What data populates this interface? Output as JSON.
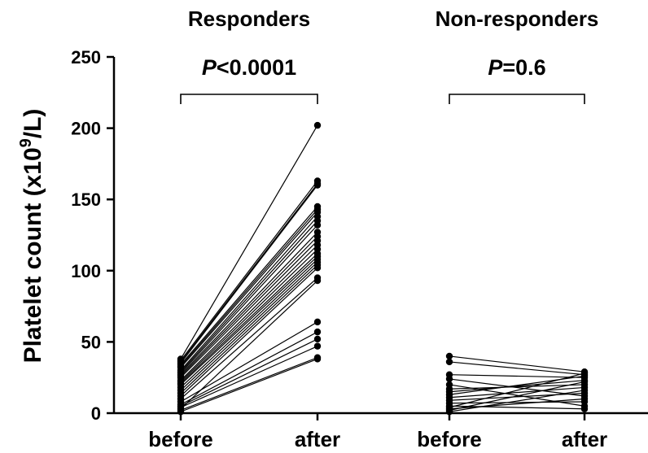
{
  "chart_data": {
    "type": "line",
    "ylabel": "Platelet count (x10",
    "ylabel_sup": "9",
    "ylabel_tail": "/L)",
    "ylim": [
      0,
      250
    ],
    "yticks": [
      "0",
      "50",
      "100",
      "150",
      "200",
      "250"
    ],
    "grid": false,
    "groups": [
      {
        "title": "Responders",
        "p_italic": "P",
        "p_rest": "<0.0001",
        "categories": [
          "before",
          "after"
        ],
        "pairs": [
          [
            38,
            202
          ],
          [
            37,
            163
          ],
          [
            36,
            161
          ],
          [
            35,
            160
          ],
          [
            34,
            145
          ],
          [
            33,
            143
          ],
          [
            32,
            141
          ],
          [
            30,
            138
          ],
          [
            29,
            135
          ],
          [
            28,
            132
          ],
          [
            27,
            127
          ],
          [
            26,
            124
          ],
          [
            25,
            121
          ],
          [
            23,
            118
          ],
          [
            22,
            115
          ],
          [
            21,
            112
          ],
          [
            20,
            110
          ],
          [
            18,
            108
          ],
          [
            16,
            106
          ],
          [
            14,
            104
          ],
          [
            12,
            102
          ],
          [
            10,
            95
          ],
          [
            8,
            64
          ],
          [
            6,
            57
          ],
          [
            5,
            52
          ],
          [
            4,
            47
          ],
          [
            2,
            39
          ],
          [
            1,
            38
          ],
          [
            3,
            93
          ]
        ]
      },
      {
        "title": "Non-responders",
        "p_italic": "P",
        "p_rest": "=0.6",
        "categories": [
          "before",
          "after"
        ],
        "pairs": [
          [
            40,
            29
          ],
          [
            36,
            27
          ],
          [
            27,
            25
          ],
          [
            24,
            12
          ],
          [
            20,
            5
          ],
          [
            17,
            20
          ],
          [
            15,
            23
          ],
          [
            13,
            26
          ],
          [
            11,
            18
          ],
          [
            9,
            14
          ],
          [
            7,
            8
          ],
          [
            5,
            3
          ],
          [
            4,
            28
          ],
          [
            3,
            10
          ],
          [
            2,
            22
          ],
          [
            1,
            16
          ]
        ]
      }
    ]
  }
}
